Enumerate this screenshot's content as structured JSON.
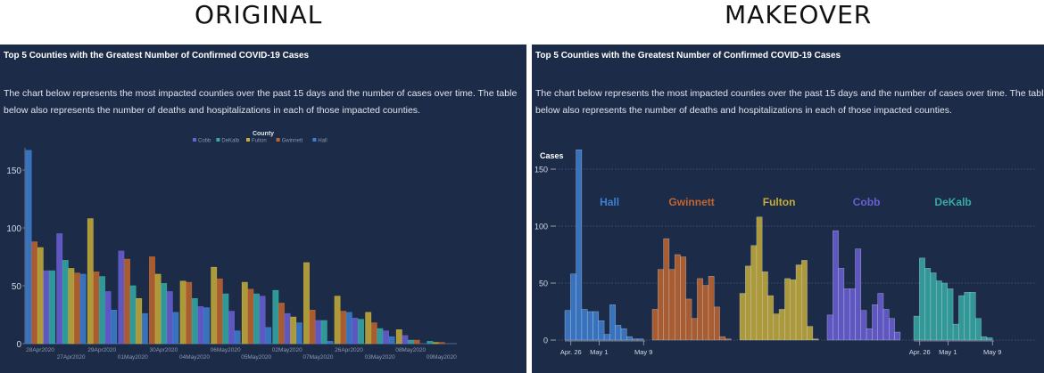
{
  "headings": {
    "left": "ORIGINAL",
    "right": "MAKEOVER"
  },
  "panel": {
    "title": "Top 5 Counties with the Greatest Number of Confirmed COVID-19 Cases",
    "description": "The chart below represents the most impacted counties over the past 15 days and the number of cases over time. The table below also represents the number of deaths and hospitalizations in each of those impacted counties."
  },
  "colors": {
    "Cobb": "#6b5fd6",
    "DeKalb": "#35aaa6",
    "Fulton": "#c4ad3a",
    "Gwinnett": "#c0652f",
    "Hall": "#3d7fd1",
    "background": "#1b2b48"
  },
  "chart_data": [
    {
      "type": "bar",
      "layout": "grouped, bars sorted descending within each date",
      "legend_title": "County",
      "legend": [
        "Cobb",
        "DeKalb",
        "Fulton",
        "Gwinnett",
        "Hall"
      ],
      "legend_position": "top-center",
      "ylim": [
        0,
        170
      ],
      "yticks": [
        0,
        50,
        100,
        150
      ],
      "grid": false,
      "categories": [
        "28Apr2020",
        "27Apr2020",
        "29Apr2020",
        "01May2020",
        "30Apr2020",
        "04May2020",
        "06May2020",
        "05May2020",
        "02May2020",
        "07May2020",
        "26Apr2020",
        "03May2020",
        "08May2020",
        "09May2020"
      ],
      "series": [
        {
          "name": "Cobb",
          "values": [
            63,
            95,
            45,
            80,
            45,
            32,
            28,
            41,
            26,
            20,
            22,
            11,
            7,
            0
          ]
        },
        {
          "name": "DeKalb",
          "values": [
            63,
            72,
            58,
            50,
            52,
            39,
            43,
            43,
            46,
            20,
            21,
            13,
            3,
            2
          ]
        },
        {
          "name": "Fulton",
          "values": [
            83,
            65,
            108,
            39,
            60,
            54,
            66,
            53,
            23,
            70,
            41,
            27,
            12,
            1
          ]
        },
        {
          "name": "Gwinnett",
          "values": [
            88,
            61,
            62,
            73,
            75,
            53,
            56,
            47,
            35,
            29,
            28,
            18,
            3,
            1
          ]
        },
        {
          "name": "Hall",
          "values": [
            167,
            60,
            29,
            26,
            27,
            31,
            11,
            14,
            18,
            2,
            27,
            6,
            0,
            0
          ]
        }
      ]
    },
    {
      "type": "bar",
      "layout": "small multiples (histogram per county)",
      "ylabel": "Cases",
      "ylim": [
        0,
        170
      ],
      "yticks": [
        0,
        50,
        100,
        150
      ],
      "grid": true,
      "x": [
        "2020-04-25",
        "2020-04-26",
        "2020-04-27",
        "2020-04-28",
        "2020-04-29",
        "2020-04-30",
        "2020-05-01",
        "2020-05-02",
        "2020-05-03",
        "2020-05-04",
        "2020-05-05",
        "2020-05-06",
        "2020-05-07",
        "2020-05-08"
      ],
      "xtick_labels": [
        "Apr. 26",
        "May 1",
        "May 9"
      ],
      "series": [
        {
          "name": "Hall",
          "values": [
            26,
            58,
            167,
            27,
            25,
            25,
            17,
            5,
            31,
            13,
            10,
            3,
            1,
            1
          ]
        },
        {
          "name": "Gwinnett",
          "values": [
            27,
            62,
            89,
            62,
            75,
            73,
            36,
            19,
            54,
            48,
            56,
            29,
            3,
            1
          ]
        },
        {
          "name": "Fulton",
          "values": [
            41,
            65,
            83,
            108,
            60,
            39,
            23,
            27,
            54,
            53,
            66,
            70,
            12,
            1
          ]
        },
        {
          "name": "Cobb",
          "values": [
            22,
            96,
            63,
            45,
            45,
            80,
            26,
            10,
            31,
            41,
            27,
            19,
            7,
            0
          ]
        },
        {
          "name": "DeKalb",
          "values": [
            21,
            72,
            63,
            59,
            52,
            50,
            45,
            14,
            39,
            42,
            42,
            19,
            3,
            2
          ]
        }
      ]
    }
  ]
}
